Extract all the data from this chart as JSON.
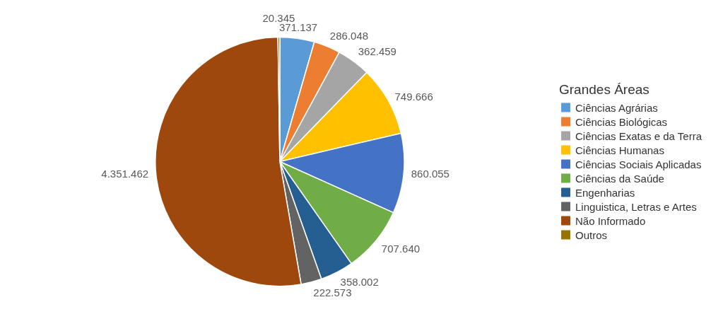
{
  "chart_data": {
    "type": "pie",
    "legend_title": "Grandes Áreas",
    "legend": "right",
    "categories": [
      "Ciências Agrárias",
      "Ciências Biológicas",
      "Ciências Exatas e da Terra",
      "Ciências Humanas",
      "Ciências Sociais Aplicadas",
      "Ciências da Saúde",
      "Engenharias",
      "Linguistica, Letras e Artes",
      "Não Informado",
      "Outros"
    ],
    "values": [
      371137,
      286048,
      362459,
      749666,
      860055,
      707640,
      358002,
      222573,
      4351462,
      20345
    ],
    "value_labels": [
      "371.137",
      "286.048",
      "362.459",
      "749.666",
      "860.055",
      "707.640",
      "358.002",
      "222.573",
      "4.351.462",
      "20.345"
    ],
    "colors": [
      "#5b9bd5",
      "#ed7d31",
      "#a5a5a5",
      "#ffc000",
      "#4472c4",
      "#70ad47",
      "#255e91",
      "#636363",
      "#9e480e",
      "#997300"
    ]
  }
}
